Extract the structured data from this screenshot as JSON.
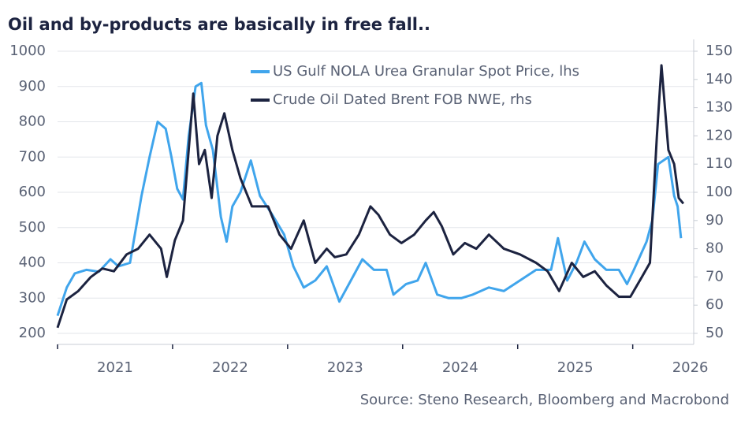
{
  "chart_data": {
    "type": "line",
    "title": "Oil and by-products are basically in free fall..",
    "source": "Source: Steno Research, Bloomberg and Macrobond",
    "xlim": [
      2021,
      2026.53
    ],
    "xticks": [
      {
        "value": 2021,
        "label": "2021"
      },
      {
        "value": 2022,
        "label": "2022"
      },
      {
        "value": 2023,
        "label": "2023"
      },
      {
        "value": 2024,
        "label": "2024"
      },
      {
        "value": 2025,
        "label": "2025"
      },
      {
        "value": 2026,
        "label": "2026"
      }
    ],
    "ylim": [
      200,
      1000
    ],
    "yticks": [
      200,
      300,
      400,
      500,
      600,
      700,
      800,
      900,
      1000
    ],
    "y2lim": [
      50,
      150
    ],
    "y2ticks": [
      50,
      60,
      70,
      80,
      90,
      100,
      110,
      120,
      130,
      140,
      150
    ],
    "grid": true,
    "legend": "top",
    "series": [
      {
        "name": "US Gulf NOLA Urea Granular Spot Price, lhs",
        "color": "#40a5ec",
        "axis": "y",
        "x": [
          2021.0,
          2021.08,
          2021.15,
          2021.25,
          2021.36,
          2021.46,
          2021.53,
          2021.63,
          2021.73,
          2021.8,
          2021.87,
          2021.94,
          2021.99,
          2022.04,
          2022.09,
          2022.14,
          2022.2,
          2022.25,
          2022.29,
          2022.35,
          2022.42,
          2022.47,
          2022.52,
          2022.59,
          2022.68,
          2022.76,
          2022.86,
          2022.97,
          2023.05,
          2023.14,
          2023.24,
          2023.34,
          2023.45,
          2023.55,
          2023.65,
          2023.75,
          2023.86,
          2023.92,
          2024.03,
          2024.13,
          2024.2,
          2024.3,
          2024.4,
          2024.51,
          2024.61,
          2024.75,
          2024.88,
          2025.02,
          2025.16,
          2025.29,
          2025.35,
          2025.43,
          2025.51,
          2025.58,
          2025.67,
          2025.77,
          2025.88,
          2025.95,
          2026.01,
          2026.12,
          2026.17,
          2026.22,
          2026.31,
          2026.36,
          2026.39,
          2026.42
        ],
        "values": [
          250,
          330,
          370,
          380,
          375,
          410,
          390,
          400,
          590,
          700,
          800,
          780,
          700,
          610,
          580,
          760,
          900,
          910,
          790,
          720,
          530,
          460,
          560,
          600,
          690,
          590,
          540,
          480,
          390,
          330,
          350,
          390,
          290,
          350,
          410,
          380,
          380,
          310,
          340,
          350,
          400,
          310,
          300,
          300,
          310,
          330,
          320,
          350,
          380,
          380,
          470,
          350,
          400,
          460,
          410,
          380,
          380,
          340,
          380,
          460,
          520,
          680,
          700,
          590,
          560,
          470
        ]
      },
      {
        "name": "Crude Oil Dated Brent FOB NWE, rhs",
        "color": "#1c2340",
        "axis": "y2",
        "x": [
          2021.0,
          2021.08,
          2021.18,
          2021.29,
          2021.39,
          2021.49,
          2021.6,
          2021.7,
          2021.8,
          2021.9,
          2021.95,
          2022.02,
          2022.09,
          2022.18,
          2022.23,
          2022.28,
          2022.34,
          2022.39,
          2022.45,
          2022.52,
          2022.59,
          2022.69,
          2022.83,
          2022.93,
          2023.03,
          2023.14,
          2023.24,
          2023.34,
          2023.41,
          2023.51,
          2023.62,
          2023.72,
          2023.79,
          2023.89,
          2023.99,
          2024.1,
          2024.2,
          2024.27,
          2024.34,
          2024.44,
          2024.54,
          2024.64,
          2024.75,
          2024.88,
          2025.02,
          2025.16,
          2025.26,
          2025.36,
          2025.47,
          2025.57,
          2025.67,
          2025.77,
          2025.88,
          2025.98,
          2026.08,
          2026.15,
          2026.21,
          2026.25,
          2026.31,
          2026.36,
          2026.4,
          2026.44
        ],
        "values": [
          52,
          62,
          65,
          70,
          73,
          72,
          78,
          80,
          85,
          80,
          70,
          83,
          90,
          135,
          110,
          115,
          98,
          120,
          128,
          115,
          105,
          95,
          95,
          85,
          80,
          90,
          75,
          80,
          77,
          78,
          85,
          95,
          92,
          85,
          82,
          85,
          90,
          93,
          88,
          78,
          82,
          80,
          85,
          80,
          78,
          75,
          72,
          65,
          75,
          70,
          72,
          67,
          63,
          63,
          70,
          75,
          120,
          145,
          115,
          110,
          98,
          96
        ]
      }
    ]
  }
}
